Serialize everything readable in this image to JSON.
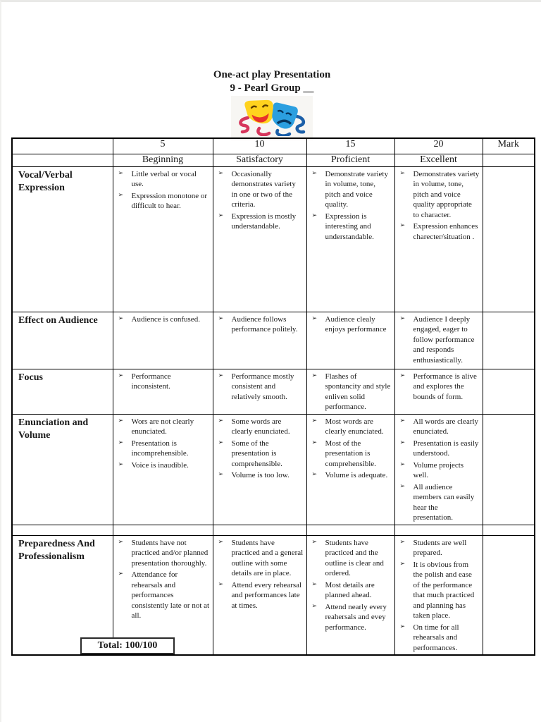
{
  "page": {
    "title": "One-act play Presentation",
    "subtitle": "9 - Pearl Group __"
  },
  "masks_image": {
    "name": "comedy-tragedy-theater-masks",
    "comedy_color": "#ffd21e",
    "tragedy_color": "#2b9fe0",
    "ribbon_left_color": "#d6365c",
    "ribbon_right_color": "#1b5fa8"
  },
  "table": {
    "bullet_glyph": "➢",
    "score_headers": [
      "5",
      "10",
      "15",
      "20"
    ],
    "mark_header": "Mark",
    "level_headers": [
      "Beginning",
      "Satisfactory",
      "Proficient",
      "Excellent"
    ],
    "rows": [
      {
        "criterion": "Vocal/Verbal Expression",
        "mark": "",
        "levels": [
          [
            "Little verbal or vocal use.",
            "Expression monotone or difficult to hear."
          ],
          [
            "Occasionally demonstrates variety in one or two of the criteria.",
            "Expression is mostly understandable."
          ],
          [
            "Demonstrate variety in volume, tone, pitch and voice quality.",
            "Expression is interesting and understandable."
          ],
          [
            "Demonstrates variety in volume, tone, pitch and voice quality appropriate to character.",
            "Expression enhances charecter/situation ."
          ]
        ]
      },
      {
        "criterion": "Effect on Audience",
        "mark": "",
        "levels": [
          [
            "Audience is confused."
          ],
          [
            "Audience follows performance politely."
          ],
          [
            "Audience clealy enjoys performance"
          ],
          [
            "Audience I deeply engaged, eager to follow performance and responds enthusiastically."
          ]
        ]
      },
      {
        "criterion": "Focus",
        "mark": "",
        "levels": [
          [
            "Performance inconsistent."
          ],
          [
            "Performance mostly consistent and relatively smooth."
          ],
          [
            "Flashes of spontancity and style enliven solid performance."
          ],
          [
            "Performance is alive and explores the bounds of form."
          ]
        ]
      },
      {
        "criterion": "Enunciation and Volume",
        "mark": "",
        "levels": [
          [
            "Wors are not clearly enunciated.",
            "Presentation is incomprehensible.",
            "Voice is inaudible."
          ],
          [
            "Some words are clearly enunciated.",
            "Some of the presentation is comprehensible.",
            "Volume is too low."
          ],
          [
            "Most words are clearly enunciated.",
            "Most of the presentation is comprehensible.",
            "Volume is adequate."
          ],
          [
            "All words are clearly enunciated.",
            "Presentation is easily understood.",
            "Volume projects well.",
            "All audience members can easily hear the presentation."
          ]
        ]
      },
      {
        "criterion": "Preparedness And Professionalism",
        "mark": "",
        "levels": [
          [
            "Students have not practiced and/or planned presentation thoroughly.",
            "Attendance for rehearsals and performances consistently late or not at all."
          ],
          [
            "Students have practiced and a general outline with some details are in place.",
            "Attend every rehearsal and performances late at times."
          ],
          [
            "Students have practiced and the outline is clear and ordered.",
            "Most details are planned ahead.",
            "Attend nearly every reahersals and evey performance."
          ],
          [
            "Students are well prepared.",
            "It is obvious from the polish and ease of the performance that much practiced and planning has taken place.",
            "On time for all rehearsals and performances."
          ]
        ]
      }
    ]
  },
  "total": {
    "label": "Total: 100/100"
  }
}
